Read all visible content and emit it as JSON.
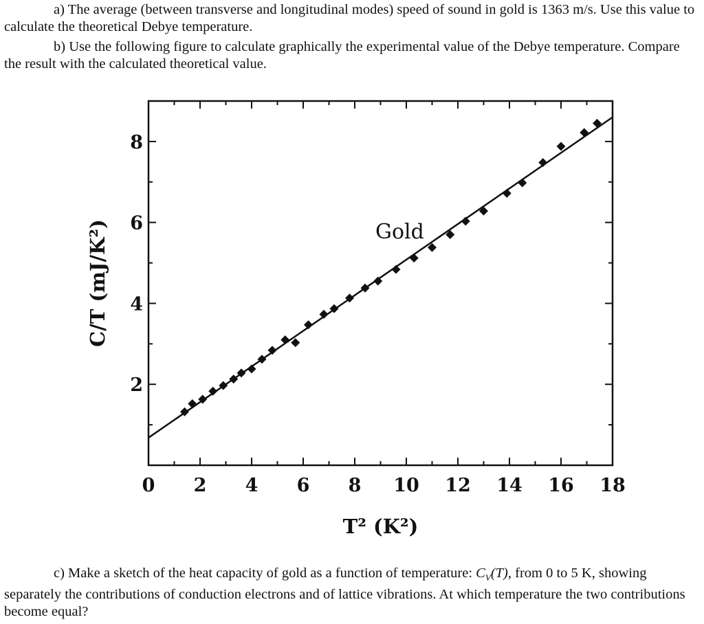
{
  "text": {
    "part_a": "a) The average (between transverse and longitudinal modes) speed of sound in gold is 1363 m/s. Use this value to calculate the theoretical Debye temperature.",
    "part_b": "b) Use the following figure to calculate graphically the experimental value of the Debye temperature. Compare the result with the calculated theoretical value.",
    "part_c": {
      "before": "c) Make a sketch of the heat capacity of gold as a function of temperature: ",
      "symbol": "C",
      "subscript": "V",
      "variable": "(T)",
      "after": ", from 0 to 5 K, showing separately the contributions of conduction electrons and of lattice vibrations. At which temperature the two contributions become equal?"
    }
  },
  "chart_data": {
    "type": "scatter",
    "xlabel": "T² (K²)",
    "ylabel": "C/T (mJ/K²)",
    "xlim": [
      0,
      18
    ],
    "ylim": [
      0,
      9
    ],
    "xticks": [
      0,
      2,
      4,
      6,
      8,
      10,
      12,
      14,
      16,
      18
    ],
    "yticks": [
      2,
      4,
      6,
      8
    ],
    "annotation": "Gold",
    "grid": false,
    "fit_line": {
      "intercept": 0.68,
      "slope": 0.44,
      "x_range": [
        0,
        18
      ]
    },
    "series": [
      {
        "points": [
          [
            1.4,
            1.32
          ],
          [
            1.7,
            1.52
          ],
          [
            2.1,
            1.63
          ],
          [
            2.5,
            1.83
          ],
          [
            2.9,
            1.97
          ],
          [
            3.3,
            2.13
          ],
          [
            3.6,
            2.28
          ],
          [
            4.0,
            2.38
          ],
          [
            4.4,
            2.62
          ],
          [
            4.8,
            2.84
          ],
          [
            5.3,
            3.1
          ],
          [
            5.7,
            3.03
          ],
          [
            6.2,
            3.47
          ],
          [
            6.8,
            3.73
          ],
          [
            7.2,
            3.87
          ],
          [
            7.8,
            4.13
          ],
          [
            8.4,
            4.38
          ],
          [
            8.9,
            4.55
          ],
          [
            9.6,
            4.84
          ],
          [
            10.3,
            5.12
          ],
          [
            11.0,
            5.38
          ],
          [
            11.7,
            5.7
          ],
          [
            12.3,
            6.03
          ],
          [
            13.0,
            6.28
          ],
          [
            13.9,
            6.72
          ],
          [
            14.5,
            6.98
          ],
          [
            15.3,
            7.48
          ],
          [
            16.0,
            7.88
          ],
          [
            16.9,
            8.22
          ],
          [
            17.4,
            8.45
          ]
        ]
      }
    ]
  }
}
